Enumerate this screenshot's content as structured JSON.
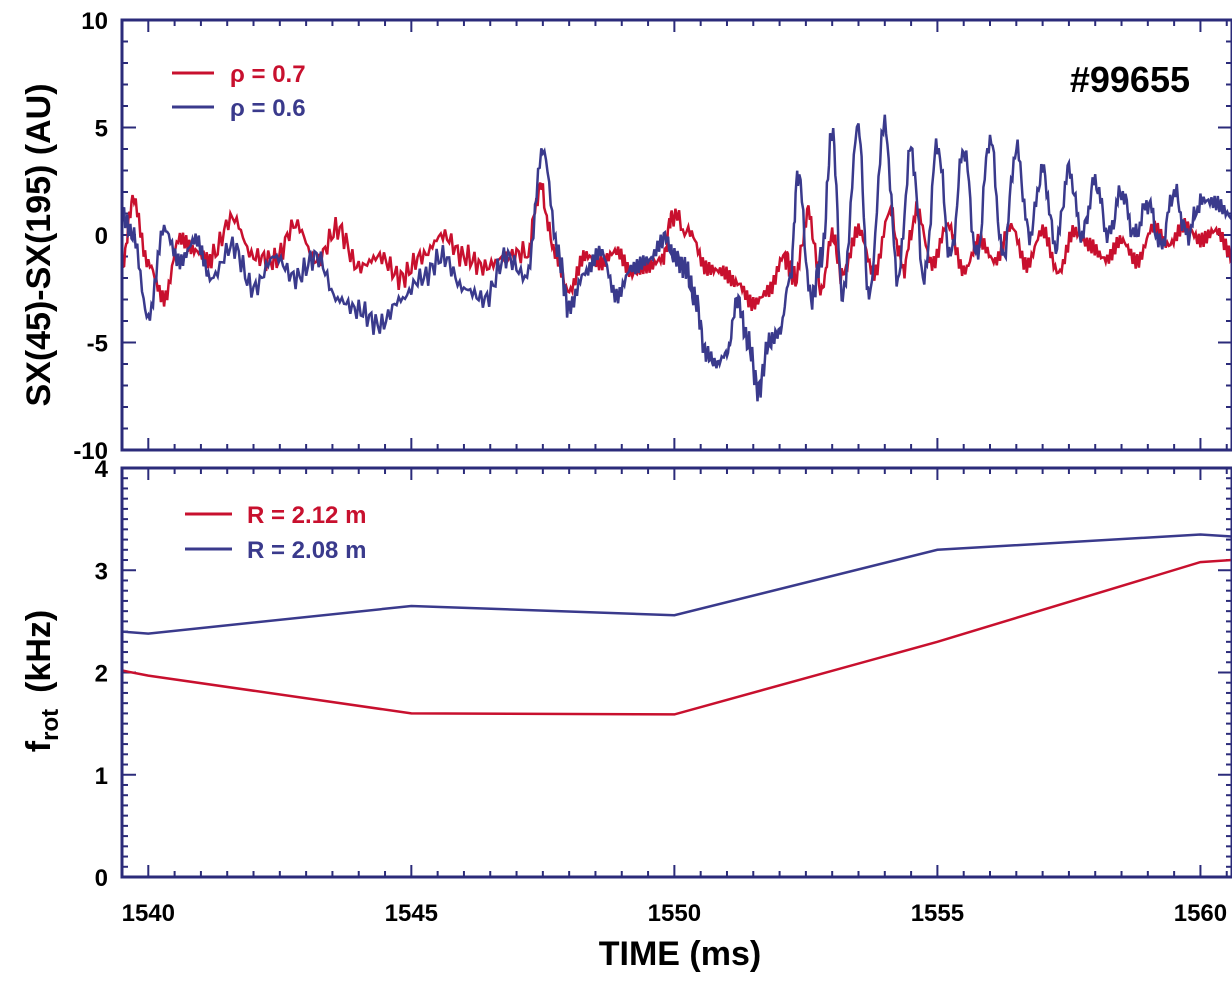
{
  "colors": {
    "red": "#c8102e",
    "blue": "#3a3a8c",
    "frame": "#2b2b7a"
  },
  "shot_label": "#99655",
  "xlabel": "TIME  (ms)",
  "chart_data": [
    {
      "type": "line",
      "ylabel": "SX(45)-SX(195)  (AU)",
      "xlim": [
        1539.5,
        1560.6
      ],
      "ylim": [
        -10,
        10
      ],
      "x_ticks": [
        1540,
        1545,
        1550,
        1555,
        1560
      ],
      "y_ticks": [
        10,
        5,
        0,
        -5,
        -10
      ],
      "y_tick_labels": [
        "10",
        "5",
        "0",
        "-5",
        "-10"
      ],
      "legend_position": "top-left",
      "series": [
        {
          "name": "ρ = 0.7",
          "color": "#c8102e",
          "x": [
            1539.5,
            1539.7,
            1540.0,
            1540.3,
            1540.6,
            1540.9,
            1541.2,
            1541.6,
            1542.0,
            1542.4,
            1542.8,
            1543.2,
            1543.6,
            1544.0,
            1544.4,
            1544.8,
            1545.2,
            1545.6,
            1546.0,
            1546.4,
            1546.8,
            1547.2,
            1547.45,
            1547.7,
            1548.0,
            1548.3,
            1548.6,
            1548.9,
            1549.2,
            1549.5,
            1549.8,
            1549.95,
            1550.3,
            1550.6,
            1550.9,
            1551.2,
            1551.5,
            1551.8,
            1552.1,
            1552.3,
            1552.55,
            1552.8,
            1553.0,
            1553.2,
            1553.5,
            1553.8,
            1554.1,
            1554.35,
            1554.6,
            1554.9,
            1555.2,
            1555.5,
            1555.8,
            1556.1,
            1556.4,
            1556.7,
            1557.0,
            1557.3,
            1557.6,
            1557.9,
            1558.2,
            1558.5,
            1558.8,
            1559.1,
            1559.4,
            1559.7,
            1560.0,
            1560.3,
            1560.6
          ],
          "y": [
            -1.5,
            1.5,
            -1.5,
            -3.0,
            0.0,
            -0.5,
            -1.0,
            0.8,
            -1.0,
            -1.2,
            0.5,
            -1.2,
            0.3,
            -1.5,
            -1.0,
            -2.0,
            -1.0,
            0.0,
            -1.0,
            -1.5,
            -1.0,
            -0.8,
            2.2,
            -0.5,
            -2.5,
            -1.0,
            -1.5,
            -1.0,
            -2.0,
            -1.5,
            -1.0,
            1.0,
            0.0,
            -1.5,
            -1.5,
            -2.0,
            -3.0,
            -2.5,
            -1.0,
            -2.0,
            1.0,
            -2.5,
            0.0,
            -2.0,
            0.0,
            -2.0,
            1.0,
            -1.5,
            1.0,
            -1.5,
            0.5,
            -1.5,
            0.0,
            -1.0,
            0.5,
            -1.5,
            0.0,
            -2.0,
            0.0,
            -0.5,
            -1.0,
            0.0,
            -1.0,
            0.5,
            -0.5,
            0.3,
            -0.5,
            0.0,
            -1.0
          ]
        },
        {
          "name": "ρ = 0.6",
          "color": "#3a3a8c",
          "x": [
            1539.5,
            1539.7,
            1540.0,
            1540.3,
            1540.6,
            1540.9,
            1541.2,
            1541.6,
            1542.0,
            1542.4,
            1542.8,
            1543.2,
            1543.6,
            1544.0,
            1544.4,
            1544.8,
            1545.2,
            1545.6,
            1546.0,
            1546.4,
            1546.8,
            1547.2,
            1547.5,
            1547.8,
            1548.0,
            1548.3,
            1548.6,
            1548.9,
            1549.2,
            1549.5,
            1549.8,
            1550.0,
            1550.2,
            1550.4,
            1550.6,
            1550.8,
            1551.0,
            1551.2,
            1551.4,
            1551.6,
            1551.8,
            1552.0,
            1552.2,
            1552.35,
            1552.6,
            1552.8,
            1553.0,
            1553.2,
            1553.5,
            1553.7,
            1554.0,
            1554.25,
            1554.5,
            1554.75,
            1555.0,
            1555.25,
            1555.5,
            1555.75,
            1556.0,
            1556.25,
            1556.5,
            1556.75,
            1557.0,
            1557.25,
            1557.5,
            1557.75,
            1558.0,
            1558.25,
            1558.5,
            1558.75,
            1559.0,
            1559.25,
            1559.5,
            1559.75,
            1560.0,
            1560.3,
            1560.6
          ],
          "y": [
            1.0,
            0.0,
            -3.8,
            0.5,
            -1.0,
            0.0,
            -2.0,
            -0.5,
            -2.5,
            -1.0,
            -2.0,
            -1.0,
            -3.0,
            -3.5,
            -4.2,
            -3.0,
            -2.0,
            -1.0,
            -2.5,
            -3.0,
            -1.0,
            -2.0,
            3.7,
            -1.0,
            -3.5,
            -2.0,
            -1.0,
            -3.0,
            -1.5,
            -1.0,
            0.0,
            -1.0,
            -1.5,
            -3.0,
            -5.5,
            -6.0,
            -5.5,
            -3.0,
            -5.0,
            -7.2,
            -5.0,
            -4.5,
            -2.0,
            2.8,
            -3.0,
            -1.0,
            4.8,
            -3.0,
            5.0,
            -3.0,
            5.0,
            -2.0,
            4.0,
            -2.0,
            4.2,
            -1.0,
            4.0,
            -1.0,
            4.5,
            -1.0,
            4.0,
            0.0,
            3.0,
            -0.5,
            3.0,
            0.0,
            2.5,
            0.0,
            2.0,
            0.0,
            1.5,
            -0.5,
            2.0,
            0.0,
            1.5,
            1.5,
            1.0
          ]
        }
      ]
    },
    {
      "type": "line",
      "ylabel_main": "f",
      "ylabel_sub": "rot",
      "ylabel_unit": "(kHz)",
      "xlim": [
        1539.5,
        1560.6
      ],
      "ylim": [
        0,
        4
      ],
      "x_ticks": [
        1540,
        1545,
        1550,
        1555,
        1560
      ],
      "x_tick_labels": [
        "1540",
        "1545",
        "1550",
        "1555",
        "1560"
      ],
      "y_ticks": [
        0,
        1,
        2,
        3,
        4
      ],
      "y_tick_labels": [
        "0",
        "1",
        "2",
        "3",
        "4"
      ],
      "legend_position": "top-left",
      "series": [
        {
          "name": "R = 2.12 m",
          "color": "#c8102e",
          "x": [
            1539.5,
            1540.0,
            1545.0,
            1550.0,
            1555.0,
            1560.0,
            1560.6
          ],
          "y": [
            2.02,
            1.97,
            1.6,
            1.59,
            2.3,
            3.08,
            3.1
          ]
        },
        {
          "name": "R = 2.08 m",
          "color": "#3a3a8c",
          "x": [
            1539.5,
            1540.0,
            1545.0,
            1550.0,
            1555.0,
            1560.0,
            1560.6
          ],
          "y": [
            2.4,
            2.38,
            2.65,
            2.56,
            3.2,
            3.35,
            3.33
          ]
        }
      ]
    }
  ]
}
